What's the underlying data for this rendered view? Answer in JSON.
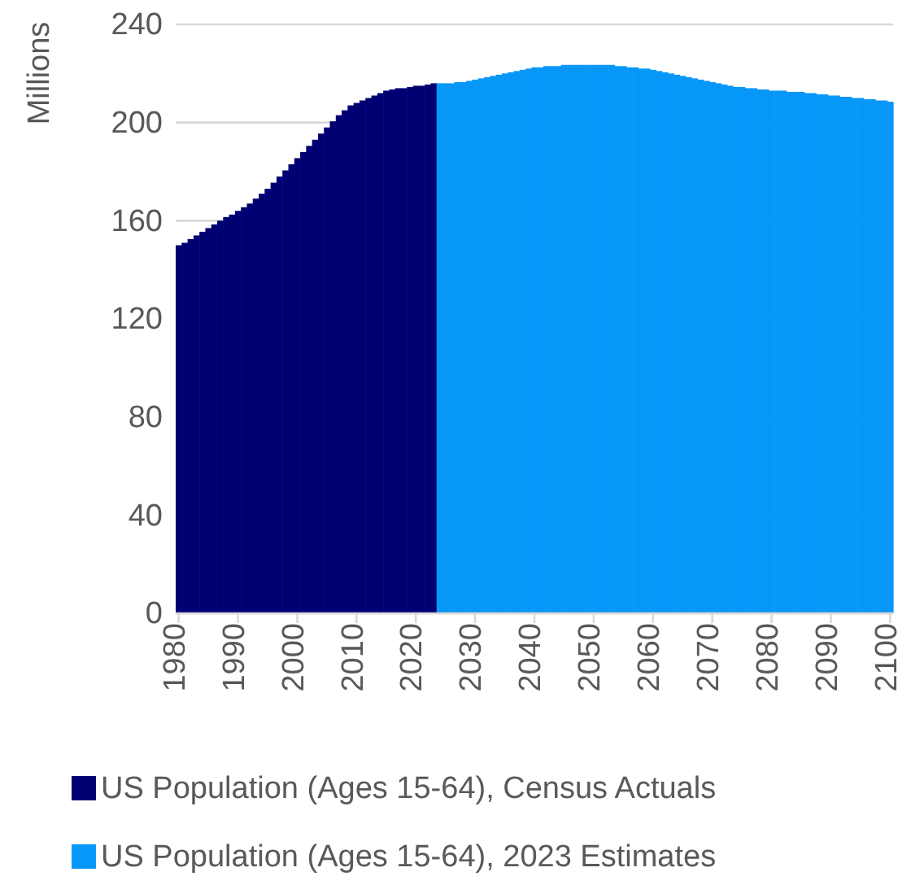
{
  "chart_data": {
    "type": "bar",
    "ylabel": "Millions",
    "categories": [
      "1980",
      null,
      null,
      null,
      null,
      null,
      null,
      null,
      null,
      null,
      "1990",
      null,
      null,
      null,
      null,
      null,
      null,
      null,
      null,
      null,
      "2000",
      null,
      null,
      null,
      null,
      null,
      null,
      null,
      null,
      null,
      "2010",
      null,
      null,
      null,
      null,
      null,
      null,
      null,
      null,
      null,
      "2020",
      null,
      null,
      null,
      null,
      null,
      null,
      null,
      null,
      null,
      "2030",
      null,
      null,
      null,
      null,
      null,
      null,
      null,
      null,
      null,
      "2040",
      null,
      null,
      null,
      null,
      null,
      null,
      null,
      null,
      null,
      "2050",
      null,
      null,
      null,
      null,
      null,
      null,
      null,
      null,
      null,
      "2060",
      null,
      null,
      null,
      null,
      null,
      null,
      null,
      null,
      null,
      "2070",
      null,
      null,
      null,
      null,
      null,
      null,
      null,
      null,
      null,
      "2080",
      null,
      null,
      null,
      null,
      null,
      null,
      null,
      null,
      null,
      "2090",
      null,
      null,
      null,
      null,
      null,
      null,
      null,
      null,
      null,
      "2100"
    ],
    "series": [
      {
        "name": "US Population (Ages 15-64), Census Actuals",
        "color": "#000073",
        "values": [
          150,
          151,
          152.5,
          154,
          155.5,
          157,
          158.5,
          160,
          161.5,
          162.5,
          164,
          165.5,
          167,
          169,
          171,
          173,
          175.5,
          178,
          180.5,
          183,
          185.5,
          188,
          190.5,
          193,
          195.5,
          198,
          200.5,
          203,
          205,
          207,
          208,
          209,
          210,
          211,
          212,
          213,
          213.5,
          214,
          214,
          214.5,
          215,
          215,
          215.5,
          216,
          null,
          null,
          null,
          null,
          null,
          null,
          null,
          null,
          null,
          null,
          null,
          null,
          null,
          null,
          null,
          null,
          null,
          null,
          null,
          null,
          null,
          null,
          null,
          null,
          null,
          null,
          null,
          null,
          null,
          null,
          null,
          null,
          null,
          null,
          null,
          null,
          null,
          null,
          null,
          null,
          null,
          null,
          null,
          null,
          null,
          null,
          null,
          null,
          null,
          null,
          null,
          null,
          null,
          null,
          null,
          null,
          null,
          null,
          null,
          null,
          null,
          null,
          null,
          null,
          null,
          null,
          null,
          null,
          null,
          null,
          null,
          null,
          null,
          null,
          null,
          null,
          null
        ]
      },
      {
        "name": "US Population (Ages 15-64), 2023 Estimates",
        "color": "#0797f8",
        "values": [
          null,
          null,
          null,
          null,
          null,
          null,
          null,
          null,
          null,
          null,
          null,
          null,
          null,
          null,
          null,
          null,
          null,
          null,
          null,
          null,
          null,
          null,
          null,
          null,
          null,
          null,
          null,
          null,
          null,
          null,
          null,
          null,
          null,
          null,
          null,
          null,
          null,
          null,
          null,
          null,
          null,
          null,
          null,
          null,
          216,
          216,
          216,
          216.5,
          216.5,
          217,
          217.5,
          218,
          218.5,
          219,
          219.5,
          220,
          220.5,
          221,
          221.5,
          222,
          222.5,
          222.5,
          223,
          223,
          223,
          223.5,
          223.5,
          223.5,
          223.5,
          223.5,
          223.5,
          223.5,
          223.5,
          223.5,
          223,
          223,
          222.5,
          222.5,
          222,
          222,
          221.5,
          221,
          220.5,
          220,
          219.5,
          219,
          218.5,
          218,
          217.5,
          217,
          216.5,
          216,
          215.5,
          215,
          214.5,
          214.5,
          214,
          214,
          213.5,
          213.5,
          213,
          213,
          213,
          212.5,
          212.5,
          212.5,
          212,
          212,
          211.5,
          211.5,
          211,
          211,
          210.5,
          210.5,
          210,
          210,
          209.5,
          209.5,
          209,
          209,
          208.5
        ]
      }
    ],
    "ylim": [
      0,
      240
    ],
    "yticks": [
      0,
      40,
      80,
      120,
      160,
      200,
      240
    ],
    "grid": "y",
    "legend": "bottom"
  }
}
